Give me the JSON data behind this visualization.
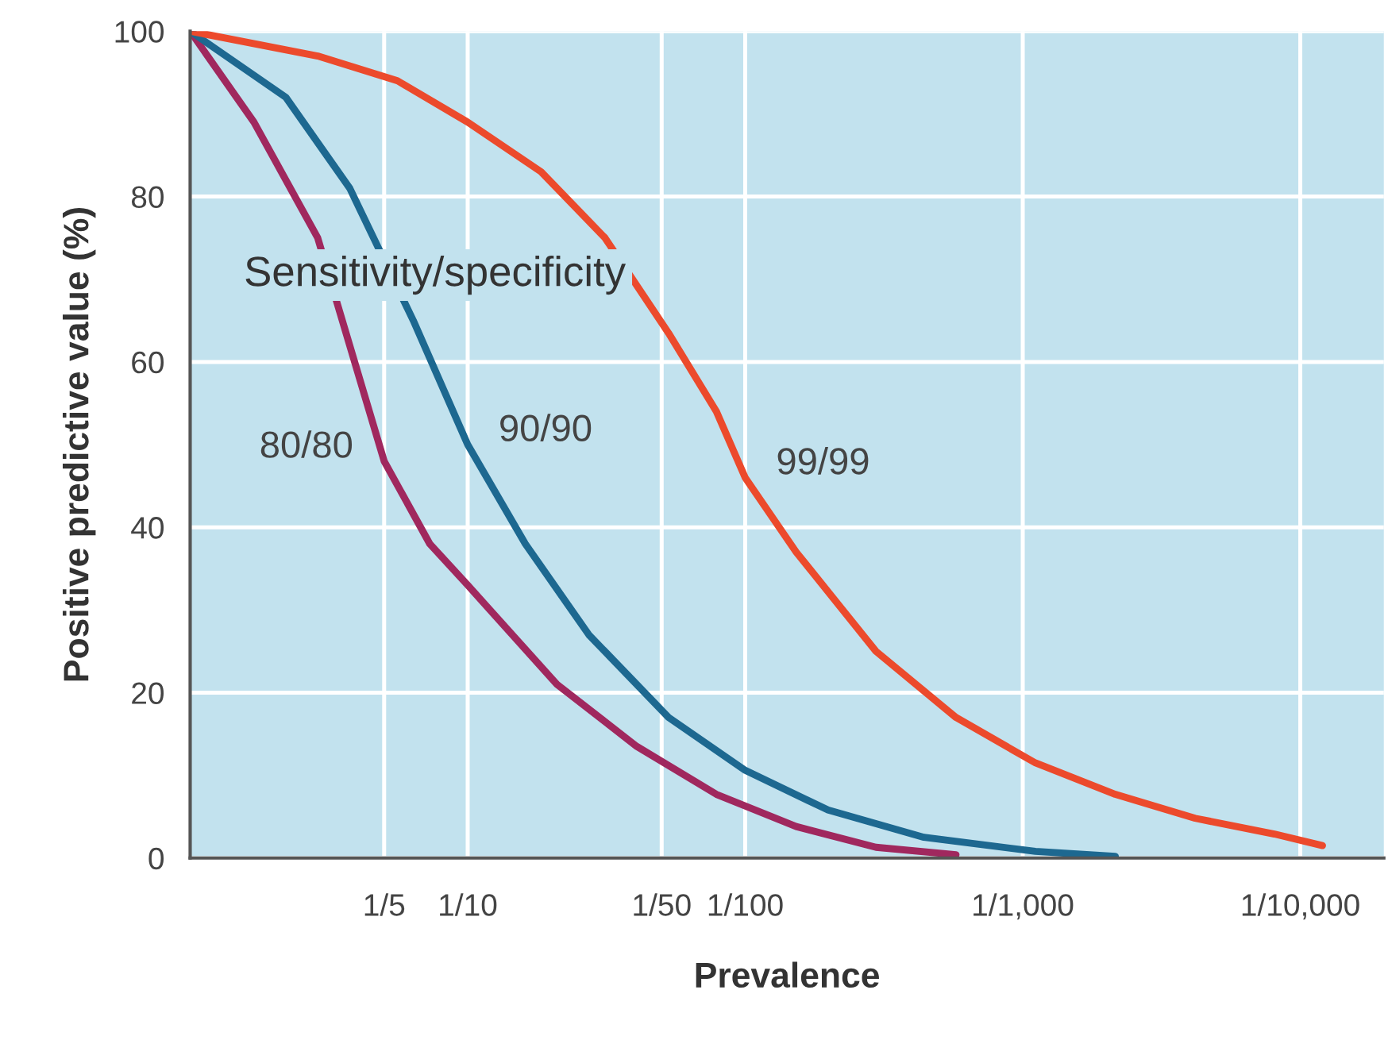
{
  "chart_data": {
    "type": "line",
    "xlabel": "Prevalence",
    "ylabel": "Positive predictive value (%)",
    "log": "x",
    "xlim": [
      1,
      5e-05
    ],
    "xticks": [
      {
        "value": 0.2,
        "label": "1/5"
      },
      {
        "value": 0.1,
        "label": "1/10"
      },
      {
        "value": 0.02,
        "label": "1/50"
      },
      {
        "value": 0.01,
        "label": "1/100"
      },
      {
        "value": 0.001,
        "label": "1/1,000"
      },
      {
        "value": 0.0001,
        "label": "1/10,000"
      }
    ],
    "ylim": [
      0,
      100
    ],
    "yticks": [
      0,
      20,
      40,
      60,
      80,
      100
    ],
    "grid": true,
    "legend": false,
    "annotations": [
      "Sensitivity/specificity"
    ],
    "series": [
      {
        "name": "80/80",
        "color": "#a0285e",
        "x": [
          1,
          0.589,
          0.347,
          0.2,
          0.137,
          0.1,
          0.0477,
          0.0246,
          0.0127,
          0.00655,
          0.00338,
          0.00174
        ],
        "values": [
          100,
          89,
          75,
          48,
          38,
          33,
          21,
          13.5,
          7.7,
          3.8,
          1.3,
          0.4
        ]
      },
      {
        "name": "90/90",
        "color": "#1d6890",
        "x": [
          1,
          0.452,
          0.266,
          0.157,
          0.1,
          0.062,
          0.0366,
          0.0189,
          0.01,
          0.00503,
          0.00227,
          0.0009,
          0.000464
        ],
        "values": [
          100,
          92,
          81,
          65,
          50,
          38,
          27,
          17,
          10.6,
          5.8,
          2.5,
          0.8,
          0.2
        ]
      },
      {
        "name": "99/99",
        "color": "#ec4a2c",
        "x": [
          1,
          0.347,
          0.179,
          0.1,
          0.0544,
          0.032,
          0.0189,
          0.0127,
          0.01,
          0.00655,
          0.00338,
          0.00174,
          0.0009,
          0.000464,
          0.000239,
          0.000124,
          8.32e-05
        ],
        "values": [
          100,
          97,
          94,
          89,
          83,
          75,
          63.5,
          54,
          46,
          37,
          25,
          17,
          11.5,
          7.7,
          4.8,
          2.9,
          1.5
        ]
      }
    ]
  }
}
